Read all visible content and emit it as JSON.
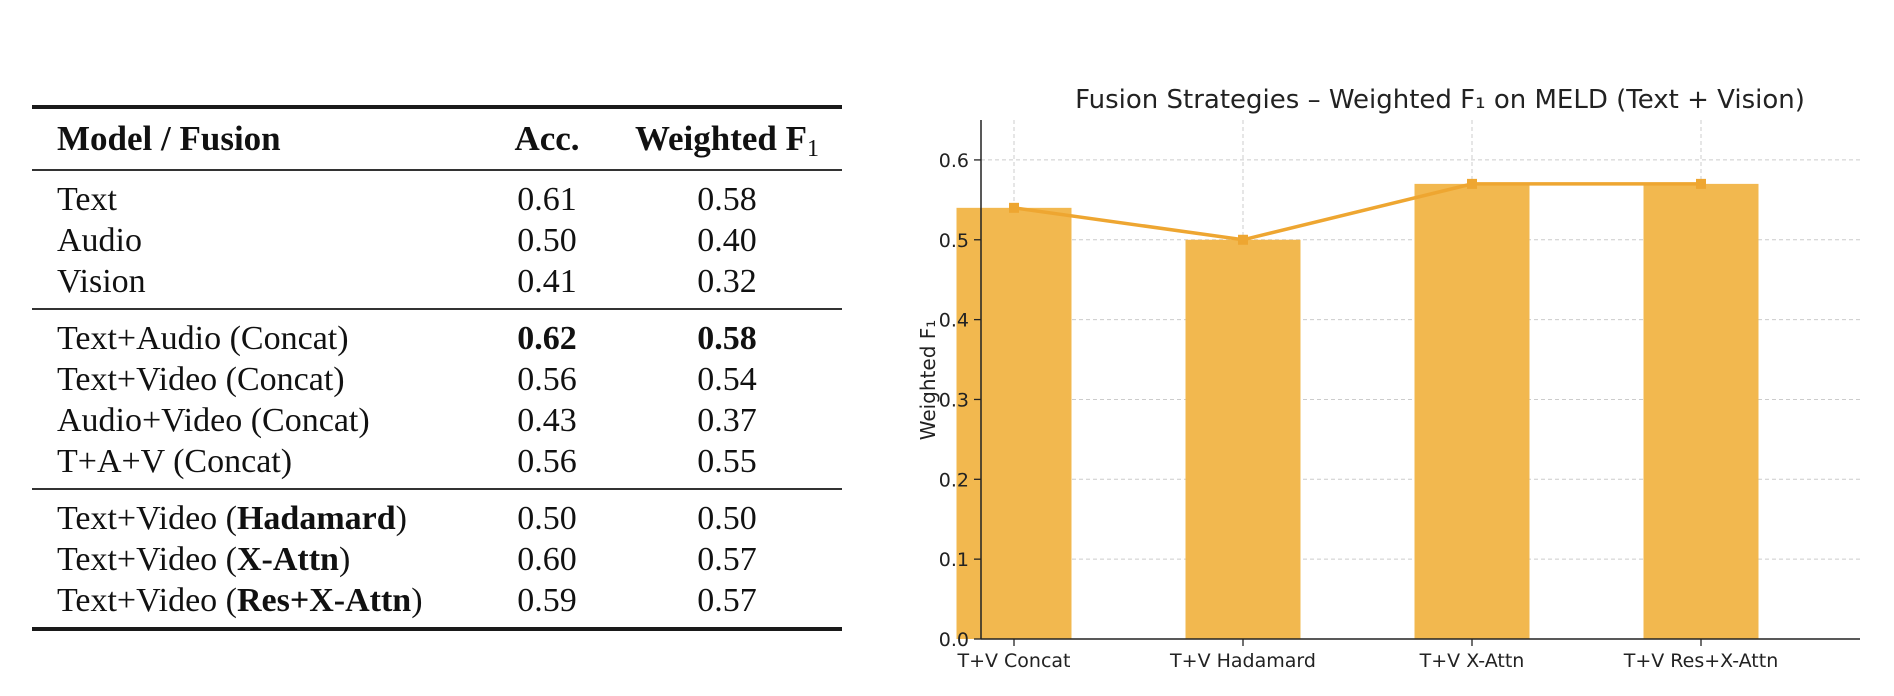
{
  "table": {
    "headers": {
      "model": "Model / Fusion",
      "acc": "Acc.",
      "f1_main": "Weighted F",
      "f1_sub": "1"
    },
    "groups": [
      [
        {
          "model": "Text",
          "acc": "0.61",
          "f1": "0.58"
        },
        {
          "model": "Audio",
          "acc": "0.50",
          "f1": "0.40"
        },
        {
          "model": "Vision",
          "acc": "0.41",
          "f1": "0.32"
        }
      ],
      [
        {
          "model": "Text+Audio (Concat)",
          "acc": "0.62",
          "f1": "0.58",
          "bold_values": true
        },
        {
          "model": "Text+Video (Concat)",
          "acc": "0.56",
          "f1": "0.54"
        },
        {
          "model": "Audio+Video (Concat)",
          "acc": "0.43",
          "f1": "0.37"
        },
        {
          "model": "T+A+V (Concat)",
          "acc": "0.56",
          "f1": "0.55"
        }
      ],
      [
        {
          "model_prefix": "Text+Video (",
          "model_bold": "Hadamard",
          "model_suffix": ")",
          "acc": "0.50",
          "f1": "0.50"
        },
        {
          "model_prefix": "Text+Video (",
          "model_bold": "X-Attn",
          "model_suffix": ")",
          "acc": "0.60",
          "f1": "0.57"
        },
        {
          "model_prefix": "Text+Video (",
          "model_bold": "Res+X-Attn",
          "model_suffix": ")",
          "acc": "0.59",
          "f1": "0.57"
        }
      ]
    ]
  },
  "chart_data": {
    "type": "bar",
    "title": "Fusion Strategies – Weighted F₁ on MELD (Text + Vision)",
    "xlabel": "",
    "ylabel": "Weighted F₁",
    "categories": [
      "T+V Concat",
      "T+V Hadamard",
      "T+V X-Attn",
      "T+V Res+X-Attn"
    ],
    "values": [
      0.54,
      0.5,
      0.57,
      0.57
    ],
    "overlay": "line",
    "ylim": [
      0,
      0.65
    ],
    "yticks": [
      "0.0",
      "0.1",
      "0.2",
      "0.3",
      "0.4",
      "0.5",
      "0.6"
    ],
    "grid": true,
    "colors": {
      "bar": "#F2B84F",
      "line": "#EEA631",
      "grid": "#cccccc",
      "axis": "#222222"
    }
  }
}
